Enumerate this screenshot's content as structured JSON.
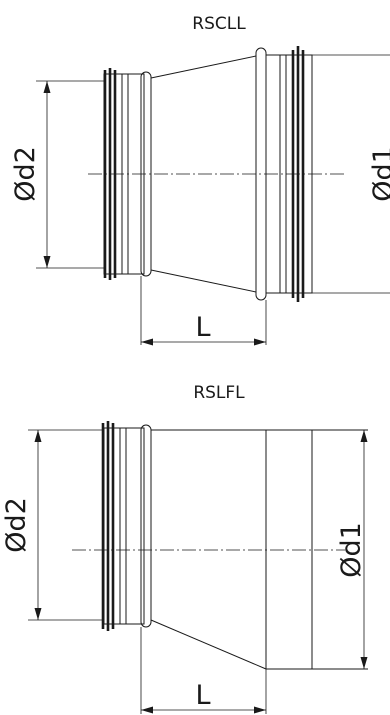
{
  "diagrams": [
    {
      "title": "RSCLL",
      "small_diameter_label": "Ød2",
      "large_diameter_label": "Ød1",
      "length_label": "L"
    },
    {
      "title": "RSLFL",
      "small_diameter_label": "Ød2",
      "large_diameter_label": "Ød1",
      "length_label": "L"
    }
  ]
}
